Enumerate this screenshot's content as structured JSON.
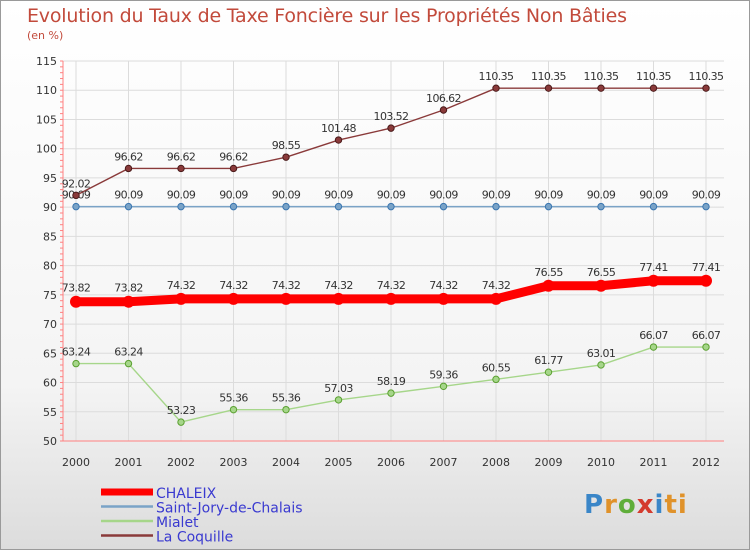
{
  "chart_data": {
    "type": "line",
    "title": "Evolution du Taux de Taxe Foncière sur les Propriétés Non Bâties",
    "ylabel": "(en %)",
    "xlabel": "",
    "x": [
      "2000",
      "2001",
      "2002",
      "2003",
      "2004",
      "2005",
      "2006",
      "2007",
      "2008",
      "2009",
      "2010",
      "2011",
      "2012"
    ],
    "ylim": [
      50,
      115
    ],
    "yticks": [
      "50",
      "55",
      "60",
      "65",
      "70",
      "75",
      "80",
      "85",
      "90",
      "95",
      "100",
      "105",
      "110",
      "115"
    ],
    "grid": true,
    "legend_position": "bottom-left",
    "series": [
      {
        "name": "CHALEIX",
        "color": "#ff0000",
        "values": [
          73.82,
          73.82,
          74.32,
          74.32,
          74.32,
          74.32,
          74.32,
          74.32,
          74.32,
          76.55,
          76.55,
          77.41,
          77.41
        ],
        "labels": [
          "73.82",
          "73.82",
          "74.32",
          "74.32",
          "74.32",
          "74.32",
          "74.32",
          "74.32",
          "74.32",
          "76.55",
          "76.55",
          "77.41",
          "77.41"
        ]
      },
      {
        "name": "Saint-Jory-de-Chalais",
        "color": "#7aa3c7",
        "values": [
          90.09,
          90.09,
          90.09,
          90.09,
          90.09,
          90.09,
          90.09,
          90.09,
          90.09,
          90.09,
          90.09,
          90.09,
          90.09
        ],
        "labels": [
          "90.09",
          "90.09",
          "90.09",
          "90.09",
          "90.09",
          "90.09",
          "90.09",
          "90.09",
          "90.09",
          "90.09",
          "90.09",
          "90.09",
          "90.09"
        ]
      },
      {
        "name": "Mialet",
        "color": "#a6d68a",
        "values": [
          63.24,
          63.24,
          53.23,
          55.36,
          55.36,
          57.03,
          58.19,
          59.36,
          60.55,
          61.77,
          63.01,
          66.07,
          66.07
        ],
        "labels": [
          "63.24",
          "63.24",
          "53.23",
          "55.36",
          "55.36",
          "57.03",
          "58.19",
          "59.36",
          "60.55",
          "61.77",
          "63.01",
          "66.07",
          "66.07"
        ]
      },
      {
        "name": "La Coquille",
        "color": "#8a3a3a",
        "values": [
          92.02,
          96.62,
          96.62,
          96.62,
          98.55,
          101.48,
          103.52,
          106.62,
          110.35,
          110.35,
          110.35,
          110.35,
          110.35
        ],
        "labels": [
          "92.02",
          "96.62",
          "96.62",
          "96.62",
          "98.55",
          "101.48",
          "103.52",
          "106.62",
          "110.35",
          "110.35",
          "110.35",
          "110.35",
          "110.35"
        ]
      }
    ]
  },
  "logo": {
    "letters": [
      "P",
      "r",
      "o",
      "x",
      "i",
      "ti"
    ]
  }
}
